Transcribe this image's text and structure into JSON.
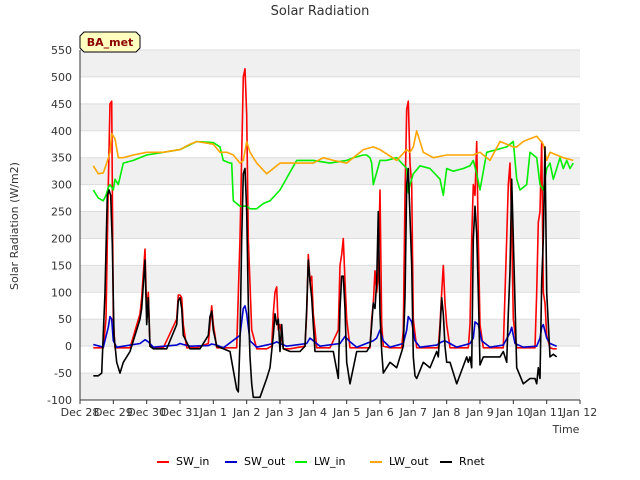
{
  "chart_data": {
    "type": "line",
    "title": "Solar Radiation",
    "xlabel": "Time",
    "ylabel": "Solar Radiation (W/m2)",
    "badge": "BA_met",
    "ylim": [
      -100,
      550
    ],
    "yticks": [
      -100,
      -50,
      0,
      50,
      100,
      150,
      200,
      250,
      300,
      350,
      400,
      450,
      500,
      550
    ],
    "xlim": [
      0,
      15
    ],
    "xticks": [
      {
        "x": 0,
        "label": "Dec 28"
      },
      {
        "x": 1,
        "label": "Dec 29"
      },
      {
        "x": 2,
        "label": "Dec 30"
      },
      {
        "x": 3,
        "label": "Dec 31"
      },
      {
        "x": 4,
        "label": "Jan 1"
      },
      {
        "x": 5,
        "label": "Jan 2"
      },
      {
        "x": 6,
        "label": "Jan 3"
      },
      {
        "x": 7,
        "label": "Jan 4"
      },
      {
        "x": 8,
        "label": "Jan 5"
      },
      {
        "x": 9,
        "label": "Jan 6"
      },
      {
        "x": 10,
        "label": "Jan 7"
      },
      {
        "x": 11,
        "label": "Jan 8"
      },
      {
        "x": 12,
        "label": "Jan 9"
      },
      {
        "x": 13,
        "label": "Jan 10"
      },
      {
        "x": 14,
        "label": "Jan 11"
      },
      {
        "x": 15,
        "label": "Jan 12"
      }
    ],
    "x_units": "days since Dec 28",
    "series": [
      {
        "name": "SW_in",
        "color": "#ff0000",
        "x": [
          0.4,
          0.7,
          0.78,
          0.85,
          0.9,
          0.95,
          1.0,
          1.05,
          1.1,
          1.2,
          1.5,
          1.8,
          1.85,
          1.95,
          2.0,
          2.05,
          2.1,
          2.2,
          2.5,
          2.9,
          2.95,
          3.0,
          3.05,
          3.1,
          3.2,
          3.5,
          3.85,
          3.9,
          3.95,
          4.0,
          4.05,
          4.1,
          4.3,
          4.7,
          4.8,
          4.9,
          4.95,
          5.0,
          5.05,
          5.15,
          5.3,
          5.6,
          5.75,
          5.8,
          5.85,
          5.9,
          5.95,
          6.0,
          6.05,
          6.1,
          6.3,
          6.75,
          6.8,
          6.85,
          6.9,
          6.95,
          7.0,
          7.05,
          7.1,
          7.2,
          7.5,
          7.75,
          7.8,
          7.85,
          7.9,
          7.95,
          8.0,
          8.1,
          8.2,
          8.7,
          8.75,
          8.8,
          8.85,
          8.9,
          8.95,
          9.0,
          9.05,
          9.1,
          9.3,
          9.65,
          9.7,
          9.75,
          9.8,
          9.85,
          9.9,
          9.95,
          10.0,
          10.1,
          10.3,
          10.75,
          10.8,
          10.85,
          10.9,
          10.95,
          11.0,
          11.1,
          11.3,
          11.65,
          11.7,
          11.75,
          11.8,
          11.85,
          11.9,
          11.95,
          12.0,
          12.1,
          12.3,
          12.7,
          12.8,
          12.85,
          12.9,
          12.95,
          13.0,
          13.1,
          13.3,
          13.65,
          13.7,
          13.75,
          13.8,
          13.85,
          13.9,
          13.95,
          14.0,
          14.1,
          14.2,
          14.3
        ],
        "y": [
          -3,
          -3,
          50,
          300,
          450,
          455,
          50,
          -3,
          -3,
          -3,
          -3,
          60,
          90,
          180,
          60,
          100,
          0,
          -3,
          -3,
          50,
          95,
          95,
          90,
          40,
          -3,
          -3,
          5,
          40,
          75,
          40,
          20,
          -3,
          -3,
          -3,
          200,
          500,
          515,
          430,
          200,
          30,
          -5,
          -5,
          0,
          60,
          100,
          110,
          30,
          40,
          20,
          -5,
          -5,
          0,
          60,
          170,
          120,
          130,
          60,
          30,
          -3,
          -3,
          -3,
          30,
          150,
          170,
          200,
          120,
          50,
          -3,
          -3,
          -3,
          50,
          80,
          140,
          100,
          130,
          290,
          40,
          0,
          -3,
          -3,
          30,
          280,
          440,
          455,
          340,
          300,
          50,
          -3,
          -3,
          -3,
          40,
          100,
          150,
          80,
          40,
          -3,
          -3,
          -3,
          40,
          200,
          300,
          280,
          380,
          200,
          40,
          -3,
          -3,
          -3,
          200,
          300,
          340,
          220,
          50,
          -3,
          -3,
          -3,
          100,
          230,
          250,
          380,
          100,
          80,
          20,
          -3,
          -5,
          -5
        ]
      },
      {
        "name": "SW_out",
        "color": "#0000cc",
        "x": [
          0.4,
          0.7,
          0.85,
          0.9,
          0.95,
          1.0,
          1.1,
          1.3,
          1.8,
          1.95,
          2.05,
          2.2,
          2.9,
          3.0,
          3.1,
          3.3,
          3.85,
          3.95,
          4.1,
          4.3,
          4.8,
          4.9,
          4.95,
          5.0,
          5.1,
          5.3,
          5.8,
          5.9,
          6.0,
          6.2,
          6.8,
          6.9,
          7.0,
          7.2,
          7.8,
          7.95,
          8.1,
          8.3,
          8.8,
          8.9,
          9.0,
          9.1,
          9.3,
          9.7,
          9.8,
          9.85,
          9.95,
          10.05,
          10.2,
          10.7,
          10.85,
          10.95,
          11.1,
          11.3,
          11.7,
          11.8,
          11.85,
          11.95,
          12.05,
          12.3,
          12.7,
          12.9,
          12.95,
          13.05,
          13.3,
          13.7,
          13.8,
          13.85,
          13.9,
          14.0,
          14.1,
          14.3
        ],
        "y": [
          3,
          -2,
          35,
          55,
          50,
          10,
          -2,
          0,
          5,
          12,
          8,
          -2,
          2,
          5,
          3,
          0,
          1,
          4,
          2,
          -3,
          20,
          70,
          75,
          60,
          10,
          -2,
          5,
          8,
          5,
          0,
          5,
          15,
          10,
          0,
          5,
          18,
          8,
          -2,
          10,
          15,
          30,
          10,
          -2,
          5,
          30,
          55,
          45,
          10,
          -2,
          2,
          8,
          10,
          5,
          -2,
          5,
          15,
          45,
          40,
          10,
          -2,
          2,
          25,
          35,
          5,
          -2,
          0,
          15,
          35,
          40,
          15,
          5,
          0
        ]
      },
      {
        "name": "LW_in",
        "color": "#00ee00",
        "x": [
          0.4,
          0.55,
          0.7,
          0.78,
          0.85,
          0.9,
          1.0,
          1.05,
          1.15,
          1.3,
          1.6,
          2.0,
          2.5,
          3.0,
          3.5,
          4.0,
          4.2,
          4.3,
          4.5,
          4.55,
          4.6,
          4.8,
          5.0,
          5.1,
          5.3,
          5.5,
          5.7,
          6.0,
          6.5,
          7.0,
          7.5,
          8.0,
          8.2,
          8.5,
          8.6,
          8.7,
          8.75,
          8.8,
          9.0,
          9.2,
          9.5,
          9.8,
          9.85,
          9.9,
          10.0,
          10.2,
          10.5,
          10.8,
          10.9,
          11.0,
          11.2,
          11.5,
          11.7,
          11.8,
          11.9,
          12.0,
          12.2,
          12.5,
          12.8,
          13.0,
          13.1,
          13.2,
          13.4,
          13.5,
          13.7,
          13.8,
          13.9,
          14.0,
          14.1,
          14.2,
          14.3,
          14.4,
          14.5,
          14.6,
          14.7,
          14.8
        ],
        "y": [
          290,
          275,
          270,
          280,
          295,
          300,
          290,
          310,
          300,
          340,
          345,
          355,
          360,
          365,
          380,
          378,
          370,
          345,
          340,
          340,
          270,
          260,
          260,
          255,
          255,
          265,
          270,
          290,
          345,
          345,
          340,
          345,
          350,
          355,
          355,
          350,
          340,
          300,
          345,
          345,
          350,
          330,
          285,
          300,
          320,
          335,
          330,
          310,
          280,
          330,
          325,
          330,
          335,
          345,
          320,
          290,
          360,
          365,
          370,
          380,
          310,
          290,
          300,
          360,
          350,
          300,
          290,
          330,
          340,
          310,
          330,
          350,
          330,
          345,
          330,
          340
        ]
      },
      {
        "name": "LW_out",
        "color": "#ffa500",
        "x": [
          0.4,
          0.55,
          0.7,
          0.8,
          0.9,
          0.95,
          1.05,
          1.15,
          1.3,
          1.6,
          2.0,
          2.5,
          3.0,
          3.3,
          3.5,
          4.0,
          4.2,
          4.4,
          4.6,
          4.8,
          4.9,
          5.0,
          5.1,
          5.3,
          5.6,
          5.8,
          6.0,
          6.5,
          7.0,
          7.3,
          7.6,
          8.0,
          8.2,
          8.5,
          8.8,
          9.0,
          9.5,
          9.8,
          9.9,
          10.0,
          10.1,
          10.3,
          10.6,
          11.0,
          11.3,
          11.6,
          11.8,
          12.0,
          12.3,
          12.6,
          13.0,
          13.1,
          13.3,
          13.5,
          13.7,
          13.9,
          14.0,
          14.1,
          14.3,
          14.5,
          14.8
        ],
        "y": [
          335,
          320,
          322,
          340,
          360,
          395,
          385,
          350,
          350,
          355,
          360,
          360,
          365,
          375,
          380,
          375,
          360,
          360,
          355,
          340,
          345,
          380,
          360,
          340,
          320,
          330,
          340,
          340,
          340,
          350,
          345,
          340,
          350,
          365,
          370,
          365,
          345,
          365,
          360,
          370,
          400,
          360,
          350,
          355,
          355,
          355,
          355,
          360,
          345,
          380,
          370,
          370,
          380,
          385,
          390,
          375,
          345,
          360,
          355,
          350,
          345
        ]
      },
      {
        "name": "Rnet",
        "color": "#000000",
        "x": [
          0.4,
          0.55,
          0.65,
          0.75,
          0.82,
          0.87,
          0.92,
          0.97,
          1.02,
          1.1,
          1.2,
          1.3,
          1.5,
          1.8,
          1.85,
          1.95,
          2.0,
          2.05,
          2.1,
          2.2,
          2.4,
          2.6,
          2.9,
          2.95,
          3.0,
          3.05,
          3.1,
          3.3,
          3.6,
          3.85,
          3.9,
          3.95,
          4.0,
          4.1,
          4.3,
          4.5,
          4.7,
          4.75,
          4.8,
          4.85,
          4.9,
          4.95,
          5.0,
          5.05,
          5.1,
          5.15,
          5.2,
          5.4,
          5.6,
          5.7,
          5.8,
          5.85,
          5.9,
          5.95,
          6.0,
          6.05,
          6.1,
          6.3,
          6.6,
          6.75,
          6.8,
          6.85,
          6.9,
          6.95,
          7.0,
          7.05,
          7.1,
          7.3,
          7.6,
          7.75,
          7.8,
          7.85,
          7.9,
          7.95,
          8.0,
          8.1,
          8.3,
          8.6,
          8.7,
          8.75,
          8.8,
          8.85,
          8.9,
          8.95,
          9.0,
          9.05,
          9.1,
          9.3,
          9.5,
          9.65,
          9.7,
          9.75,
          9.8,
          9.85,
          9.9,
          9.95,
          10.0,
          10.05,
          10.1,
          10.3,
          10.5,
          10.7,
          10.75,
          10.8,
          10.85,
          10.9,
          10.95,
          11.0,
          11.1,
          11.3,
          11.6,
          11.65,
          11.7,
          11.75,
          11.8,
          11.85,
          11.9,
          11.95,
          12.0,
          12.1,
          12.3,
          12.6,
          12.7,
          12.8,
          12.85,
          12.9,
          12.95,
          13.0,
          13.1,
          13.3,
          13.5,
          13.65,
          13.7,
          13.75,
          13.8,
          13.85,
          13.9,
          13.95,
          14.0,
          14.1,
          14.2,
          14.3
        ],
        "y": [
          -55,
          -55,
          -50,
          100,
          280,
          290,
          280,
          190,
          20,
          -30,
          -50,
          -30,
          -10,
          50,
          70,
          160,
          40,
          90,
          0,
          -5,
          -5,
          -5,
          40,
          85,
          90,
          70,
          20,
          -5,
          -5,
          20,
          55,
          65,
          30,
          0,
          -5,
          -10,
          -80,
          -85,
          10,
          200,
          320,
          330,
          250,
          80,
          -20,
          -70,
          -95,
          -95,
          -60,
          -40,
          20,
          60,
          40,
          50,
          -10,
          40,
          -5,
          -10,
          -10,
          0,
          70,
          160,
          120,
          90,
          40,
          -10,
          -10,
          -10,
          -10,
          -60,
          70,
          130,
          130,
          70,
          -30,
          -70,
          -10,
          -10,
          0,
          40,
          80,
          70,
          120,
          250,
          60,
          -10,
          -50,
          -30,
          -40,
          -10,
          0,
          90,
          300,
          330,
          240,
          150,
          -20,
          -55,
          -60,
          -30,
          -40,
          -10,
          -20,
          30,
          90,
          60,
          0,
          -30,
          -30,
          -70,
          -20,
          -30,
          -20,
          -40,
          200,
          260,
          210,
          100,
          -35,
          -20,
          -20,
          -20,
          -10,
          -30,
          60,
          140,
          310,
          200,
          -40,
          -70,
          -60,
          -60,
          -70,
          -40,
          -60,
          120,
          200,
          370,
          100,
          -20,
          -15,
          -20
        ]
      }
    ]
  }
}
